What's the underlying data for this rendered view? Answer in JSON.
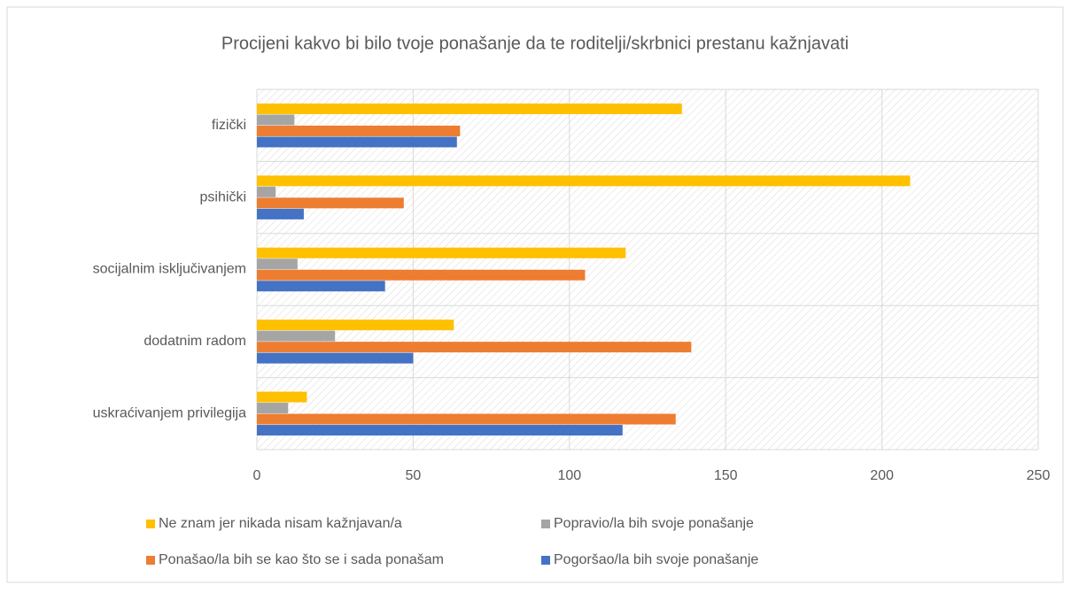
{
  "chart_data": {
    "type": "bar",
    "orientation": "horizontal",
    "title": "Procijeni kakvo bi bilo tvoje ponašanje da te roditelji/skrbnici prestanu kažnjavati",
    "categories": [
      "fizički",
      "psihički",
      "socijalnim isključivanjem",
      "dodatnim radom",
      "uskraćivanjem privilegija"
    ],
    "series": [
      {
        "name": "Ne znam jer nikada nisam kažnjavan/a",
        "color": "#ffc000",
        "values": [
          136,
          209,
          118,
          63,
          16
        ]
      },
      {
        "name": "Popravio/la bih svoje ponašanje",
        "color": "#a5a5a5",
        "values": [
          12,
          6,
          13,
          25,
          10
        ]
      },
      {
        "name": "Ponašao/la bih se kao što se i sada ponašam",
        "color": "#ed7d31",
        "values": [
          65,
          47,
          105,
          139,
          134
        ]
      },
      {
        "name": "Pogoršao/la bih svoje ponašanje",
        "color": "#4472c4",
        "values": [
          64,
          15,
          41,
          50,
          117
        ]
      }
    ],
    "xlim": [
      0,
      250
    ],
    "xticks": [
      0,
      50,
      100,
      150,
      200,
      250
    ],
    "grid": true,
    "legend": "bottom"
  }
}
